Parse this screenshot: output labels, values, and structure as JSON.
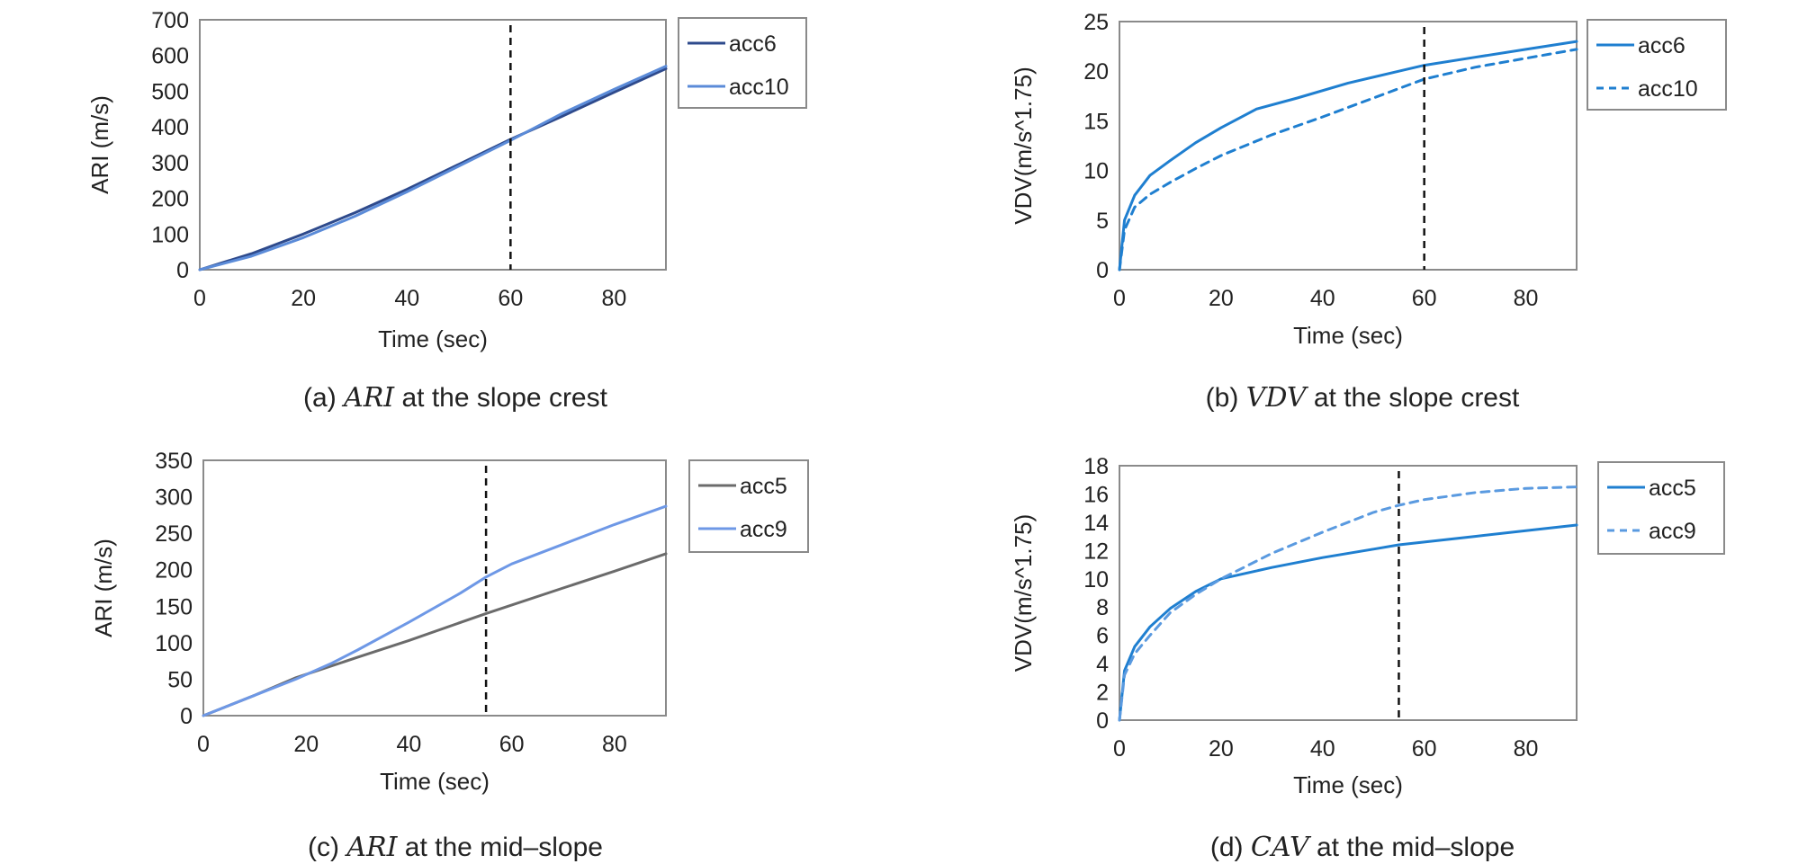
{
  "chart_data": [
    {
      "type": "line",
      "caption": {
        "prefix": "(a)",
        "variable": "ARI",
        "suffix": "at the slope crest"
      },
      "xlabel": "Time (sec)",
      "ylabel": "ARI (m/s)",
      "xlim": [
        0,
        90
      ],
      "ylim": [
        0,
        700
      ],
      "xticks": [
        0,
        20,
        40,
        60,
        80
      ],
      "yticks": [
        0,
        100,
        200,
        300,
        400,
        500,
        600,
        700
      ],
      "grid": false,
      "legend": "right-outside-top",
      "marker_line_x": 60,
      "series": [
        {
          "name": "acc6",
          "color": "#2e4a8c",
          "dash": false,
          "x": [
            0,
            10,
            20,
            30,
            40,
            50,
            60,
            70,
            80,
            90
          ],
          "y": [
            0,
            45,
            100,
            160,
            225,
            295,
            365,
            430,
            497,
            563
          ]
        },
        {
          "name": "acc10",
          "color": "#5b8bd8",
          "dash": false,
          "x": [
            0,
            10,
            20,
            30,
            40,
            50,
            60,
            70,
            80,
            90
          ],
          "y": [
            0,
            38,
            90,
            150,
            218,
            290,
            362,
            438,
            505,
            570
          ]
        }
      ]
    },
    {
      "type": "line",
      "caption": {
        "prefix": "(b)",
        "variable": "VDV",
        "suffix": "at the slope crest"
      },
      "xlabel": "Time (sec)",
      "ylabel": "VDV(m/s^1.75)",
      "xlim": [
        0,
        90
      ],
      "ylim": [
        0,
        25
      ],
      "xticks": [
        0,
        20,
        40,
        60,
        80
      ],
      "yticks": [
        0,
        5,
        10,
        15,
        20,
        25
      ],
      "grid": false,
      "legend": "right-outside-top",
      "marker_line_x": 60,
      "series": [
        {
          "name": "acc6",
          "color": "#1f7fd0",
          "dash": false,
          "x": [
            0,
            1,
            3,
            6,
            10,
            15,
            20,
            27,
            35,
            45,
            55,
            60,
            70,
            80,
            90
          ],
          "y": [
            0,
            5,
            7.5,
            9.5,
            11,
            12.8,
            14.3,
            16.2,
            17.3,
            18.8,
            20,
            20.6,
            21.4,
            22.2,
            23
          ]
        },
        {
          "name": "acc10",
          "color": "#1f7fd0",
          "dash": true,
          "x": [
            0,
            1,
            3,
            6,
            10,
            15,
            20,
            30,
            40,
            50,
            60,
            70,
            80,
            90
          ],
          "y": [
            0,
            4,
            6.3,
            7.6,
            8.8,
            10.2,
            11.5,
            13.6,
            15.4,
            17.3,
            19.2,
            20.4,
            21.3,
            22.2
          ]
        }
      ]
    },
    {
      "type": "line",
      "caption": {
        "prefix": "(c)",
        "variable": "ARI",
        "suffix": "at the mid–slope"
      },
      "xlabel": "Time (sec)",
      "ylabel": "ARI (m/s)",
      "xlim": [
        0,
        90
      ],
      "ylim": [
        0,
        350
      ],
      "xticks": [
        0,
        20,
        40,
        60,
        80
      ],
      "yticks": [
        0,
        50,
        100,
        150,
        200,
        250,
        300,
        350
      ],
      "grid": false,
      "legend": "right-outside-top",
      "marker_line_x": 55,
      "series": [
        {
          "name": "acc5",
          "color": "#6b6b6b",
          "dash": false,
          "x": [
            0,
            10,
            18,
            30,
            40,
            55,
            70,
            80,
            90
          ],
          "y": [
            0,
            28,
            52,
            80,
            103,
            140,
            175,
            198,
            222
          ]
        },
        {
          "name": "acc9",
          "color": "#6e98e6",
          "dash": false,
          "x": [
            0,
            10,
            18,
            25,
            30,
            40,
            50,
            55,
            60,
            70,
            80,
            90
          ],
          "y": [
            0,
            28,
            50,
            72,
            90,
            128,
            168,
            190,
            208,
            235,
            262,
            287
          ]
        }
      ]
    },
    {
      "type": "line",
      "caption": {
        "prefix": "(d)",
        "variable": "CAV",
        "suffix": "at the mid–slope"
      },
      "xlabel": "Time (sec)",
      "ylabel": "VDV(m/s^1.75)",
      "xlim": [
        0,
        90
      ],
      "ylim": [
        0,
        18
      ],
      "xticks": [
        0,
        20,
        40,
        60,
        80
      ],
      "yticks": [
        0,
        2,
        4,
        6,
        8,
        10,
        12,
        14,
        16,
        18
      ],
      "grid": false,
      "legend": "right-outside-top",
      "marker_line_x": 55,
      "series": [
        {
          "name": "acc5",
          "color": "#1f7fd0",
          "dash": false,
          "x": [
            0,
            1,
            3,
            6,
            10,
            15,
            20,
            30,
            40,
            50,
            55,
            60,
            70,
            80,
            90
          ],
          "y": [
            0,
            3.5,
            5.2,
            6.6,
            7.9,
            9.1,
            10,
            10.8,
            11.5,
            12.1,
            12.4,
            12.6,
            13,
            13.4,
            13.8
          ]
        },
        {
          "name": "acc9",
          "color": "#5a9ae0",
          "dash": true,
          "x": [
            0,
            1,
            3,
            6,
            10,
            15,
            20,
            30,
            40,
            50,
            55,
            60,
            70,
            80,
            90
          ],
          "y": [
            0,
            3.2,
            4.7,
            6,
            7.6,
            8.9,
            10,
            11.8,
            13.3,
            14.7,
            15.2,
            15.6,
            16.1,
            16.4,
            16.5
          ]
        }
      ]
    }
  ]
}
